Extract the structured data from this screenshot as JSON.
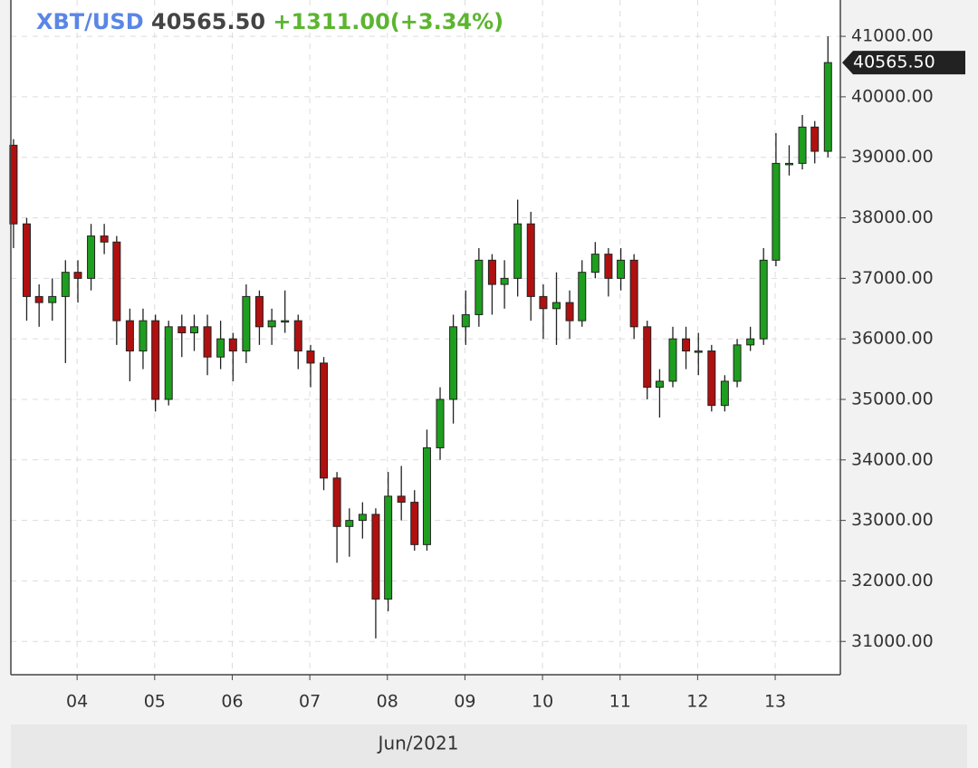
{
  "chart_data": {
    "type": "candlestick",
    "symbol": "XBT/USD",
    "last": "40565.50",
    "change": "+1311.00(+3.34%)",
    "x_axis_label": "Jun/2021",
    "up_color": "#1e9e1e",
    "down_color": "#b01010",
    "grid": true,
    "x": [
      3.18,
      3.35,
      3.51,
      3.68,
      3.85,
      4.01,
      4.18,
      4.35,
      4.51,
      4.68,
      4.85,
      5.01,
      5.18,
      5.35,
      5.51,
      5.68,
      5.85,
      6.01,
      6.18,
      6.35,
      6.51,
      6.68,
      6.85,
      7.01,
      7.18,
      7.35,
      7.51,
      7.68,
      7.85,
      8.01,
      8.18,
      8.35,
      8.51,
      8.68,
      8.85,
      9.01,
      9.18,
      9.35,
      9.51,
      9.68,
      9.85,
      10.01,
      10.18,
      10.35,
      10.51,
      10.68,
      10.85,
      11.01,
      11.18,
      11.35,
      11.51,
      11.68,
      11.85,
      12.01,
      12.18,
      12.35,
      12.51,
      12.68,
      12.85,
      13.01,
      13.18,
      13.35,
      13.51,
      13.68
    ],
    "open": [
      39200,
      37900,
      36700,
      36600,
      36700,
      37100,
      37000,
      37700,
      37600,
      36300,
      35800,
      36300,
      35000,
      36200,
      36100,
      36200,
      35700,
      36000,
      35800,
      36700,
      36200,
      36300,
      36300,
      35800,
      35600,
      33700,
      32900,
      33000,
      33100,
      31700,
      33400,
      33300,
      32600,
      34200,
      35000,
      36200,
      36400,
      37300,
      36900,
      37000,
      37900,
      36700,
      36500,
      36600,
      36300,
      37100,
      37400,
      37000,
      37300,
      36200,
      35200,
      35300,
      36000,
      35800,
      35800,
      34900,
      35300,
      35900,
      36000,
      37300,
      38900,
      38900,
      39500,
      39100
    ],
    "high": [
      39300,
      38000,
      36900,
      37000,
      37300,
      37300,
      37900,
      37900,
      37700,
      36500,
      36500,
      36400,
      36300,
      36400,
      36400,
      36400,
      36300,
      36100,
      36900,
      36800,
      36500,
      36800,
      36400,
      35900,
      35700,
      33800,
      33200,
      33300,
      33200,
      33800,
      33900,
      33500,
      34500,
      35200,
      36400,
      36800,
      37500,
      37400,
      37300,
      38300,
      38100,
      36900,
      37100,
      36800,
      37300,
      37600,
      37500,
      37500,
      37400,
      36300,
      35500,
      36200,
      36200,
      36100,
      35900,
      35400,
      36000,
      36200,
      37500,
      39400,
      39200,
      39700,
      39600,
      41000
    ],
    "low": [
      37500,
      36300,
      36200,
      36300,
      35600,
      36600,
      36800,
      37400,
      35900,
      35300,
      35500,
      34800,
      34900,
      35700,
      35800,
      35400,
      35500,
      35300,
      35600,
      35900,
      35900,
      36100,
      35500,
      35200,
      33500,
      32300,
      32400,
      32700,
      31050,
      31500,
      33000,
      32500,
      32500,
      34000,
      34600,
      35900,
      36200,
      36400,
      36500,
      36700,
      36300,
      36000,
      35900,
      36000,
      36200,
      37000,
      36700,
      36800,
      36000,
      35000,
      34700,
      35200,
      35500,
      35400,
      34800,
      34800,
      35200,
      35800,
      35900,
      37200,
      38700,
      38800,
      38900,
      39000
    ],
    "close": [
      37900,
      36700,
      36600,
      36700,
      37100,
      37000,
      37700,
      37600,
      36300,
      35800,
      36300,
      35000,
      36200,
      36100,
      36200,
      35700,
      36000,
      35800,
      36700,
      36200,
      36300,
      36300,
      35800,
      35600,
      33700,
      32900,
      33000,
      33100,
      31700,
      33400,
      33300,
      32600,
      34200,
      35000,
      36200,
      36400,
      37300,
      36900,
      37000,
      37900,
      36700,
      36500,
      36600,
      36300,
      37100,
      37400,
      37000,
      37300,
      36200,
      35200,
      35300,
      36000,
      35800,
      35800,
      34900,
      35300,
      35900,
      36000,
      37300,
      38900,
      38900,
      39500,
      39100,
      40565.5
    ],
    "xlim": [
      3.146,
      13.84
    ],
    "ylim": [
      30450,
      41600
    ],
    "xticks": [
      {
        "value": 4,
        "label": "04"
      },
      {
        "value": 5,
        "label": "05"
      },
      {
        "value": 6,
        "label": "06"
      },
      {
        "value": 7,
        "label": "07"
      },
      {
        "value": 8,
        "label": "08"
      },
      {
        "value": 9,
        "label": "09"
      },
      10,
      11,
      12,
      13
    ],
    "yticks": [
      {
        "value": 31000,
        "label": "31000.00"
      },
      {
        "value": 32000,
        "label": "32000.00"
      },
      {
        "value": 33000,
        "label": "33000.00"
      },
      {
        "value": 34000,
        "label": "34000.00"
      },
      {
        "value": 35000,
        "label": "35000.00"
      },
      {
        "value": 36000,
        "label": "36000.00"
      },
      {
        "value": 37000,
        "label": "37000.00"
      },
      {
        "value": 38000,
        "label": "38000.00"
      },
      {
        "value": 39000,
        "label": "39000.00"
      },
      {
        "value": 40000,
        "label": "40000.00"
      },
      {
        "value": 41000,
        "label": "41000.00"
      }
    ]
  }
}
